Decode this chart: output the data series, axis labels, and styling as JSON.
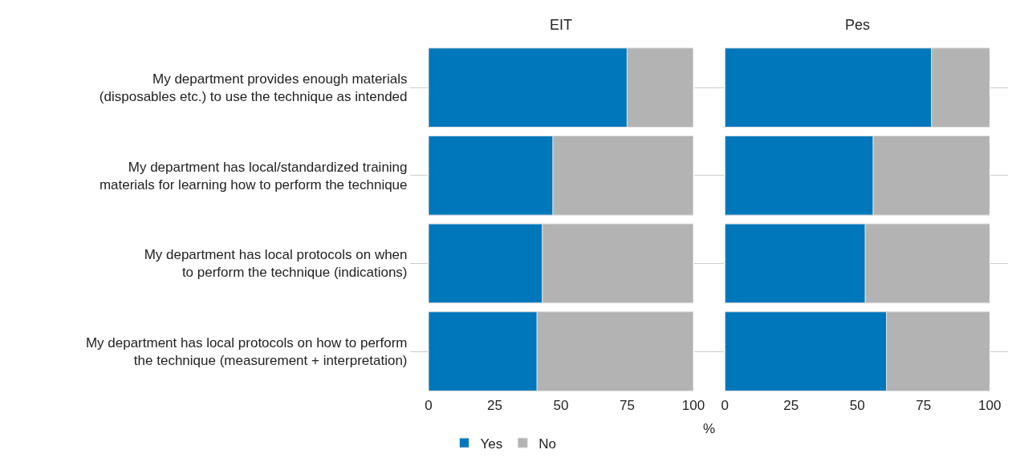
{
  "chart_data": [
    {
      "type": "bar",
      "orientation": "horizontal",
      "stacked": true,
      "title": "EIT",
      "xlabel": "%",
      "legend": "bottom",
      "categories": [
        "My department provides enough materials (disposables etc.) to use the technique as intended",
        "My department has local/standardized training materials for learning how to perform the technique",
        "My department has local protocols on when to perform the technique (indications)",
        "My department has local protocols on how to perform the technique (measurement + interpretation)"
      ],
      "series": [
        {
          "name": "Yes",
          "color": "#0077bb",
          "values": [
            75,
            47,
            43,
            41
          ]
        },
        {
          "name": "No",
          "color": "#b3b3b3",
          "values": [
            25,
            53,
            57,
            59
          ]
        }
      ],
      "xlim": [
        0,
        100
      ],
      "xticks": [
        0,
        25,
        50,
        75,
        100
      ]
    },
    {
      "type": "bar",
      "orientation": "horizontal",
      "stacked": true,
      "title": "Pes",
      "tick_labels": "x",
      "categories": [
        null,
        null,
        null,
        null
      ],
      "series": [
        {
          "color": "#0077bb",
          "values": [
            78,
            56,
            53,
            61
          ]
        },
        {
          "color": "#b3b3b3",
          "values": [
            22,
            44,
            47,
            39
          ]
        }
      ],
      "xlim": [
        0,
        100
      ],
      "xticks": [
        0,
        25,
        50,
        75,
        100
      ]
    }
  ]
}
